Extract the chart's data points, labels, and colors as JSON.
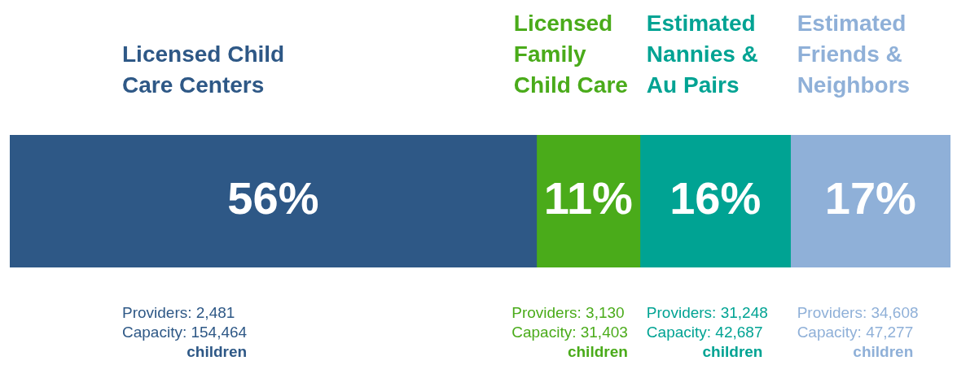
{
  "chart_data": {
    "type": "bar",
    "orientation": "horizontal",
    "stacked": true,
    "categories": [
      null
    ],
    "xlim": [
      0,
      100
    ],
    "tick_labels": false,
    "series": [
      {
        "name": "Licensed Child Care Centers",
        "color": "#2e5886",
        "values": [
          56
        ],
        "value_labels": [
          "56%"
        ]
      },
      {
        "name": "Licensed Family Child Care",
        "color": "#4aab1a",
        "values": [
          11
        ],
        "value_labels": [
          "11%"
        ]
      },
      {
        "name": "Estimated Nannies & Au Pairs",
        "color": "#00a393",
        "values": [
          16
        ],
        "value_labels": [
          "16%"
        ]
      },
      {
        "name": "Estimated Friends & Neighbors",
        "color": "#8fb0d8",
        "values": [
          17
        ],
        "value_labels": [
          "17%"
        ]
      }
    ],
    "annotations": [
      "Providers: 2,481\nCapacity: 154,464\nchildren",
      "Providers: 3,130\nCapacity: 31,403\nchildren",
      "Providers: 31,248\nCapacity: 42,687\nchildren",
      "Providers: 34,608\nCapacity: 47,277\nchildren"
    ]
  }
}
